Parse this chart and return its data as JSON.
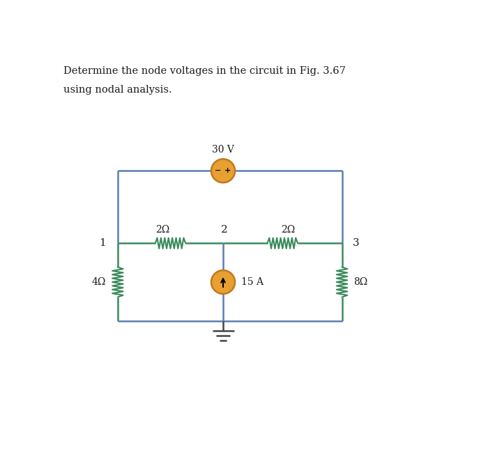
{
  "title_line1": "Determine the node voltages in the circuit in Fig. 3.67",
  "title_line2": "using nodal analysis.",
  "bg_color": "#ffffff",
  "wire_color": "#5b7db1",
  "wire_lw": 1.8,
  "resistor_color": "#3a8a5a",
  "source_fill": "#e8a030",
  "source_edge": "#c07820",
  "text_color": "#1a1a1a",
  "ground_color": "#444444",
  "voltage_source_label": "30 V",
  "current_source_label": "15 A",
  "resistor_labels": [
    "2Ω",
    "2Ω",
    "4Ω",
    "8Ω"
  ],
  "node_labels": [
    "1",
    "2",
    "3"
  ]
}
